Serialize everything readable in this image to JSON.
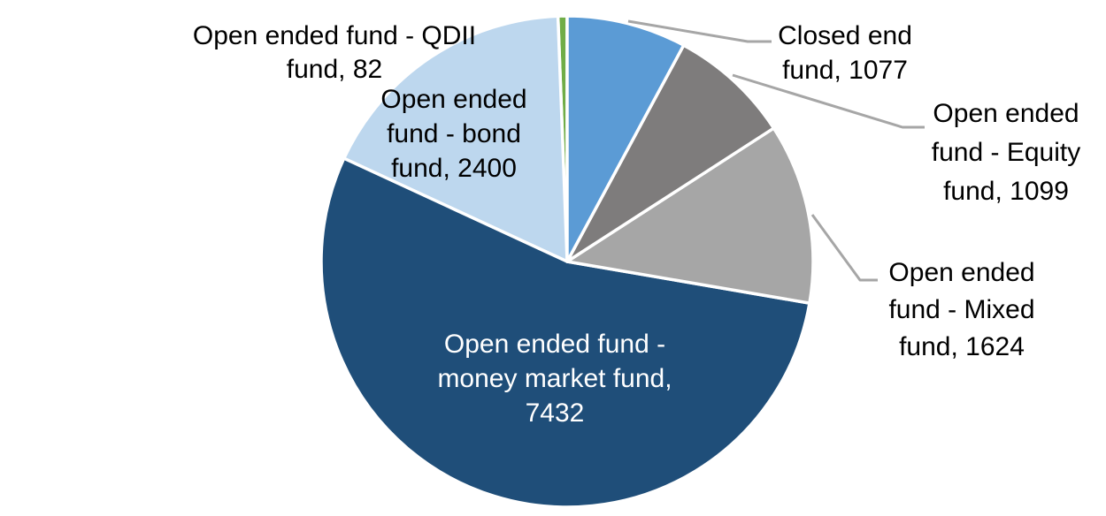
{
  "chart_data": {
    "type": "pie",
    "title": "",
    "legend": "none",
    "background": "#FFFFFF",
    "slice_border_color": "#FFFFFF",
    "leader_line_color": "#A6A6A6",
    "start_angle_deg": 0,
    "direction": "clockwise",
    "total": 13714,
    "series": [
      {
        "name": "Closed end fund",
        "value": 1077,
        "color": "#5B9BD5",
        "label_color": "#000000"
      },
      {
        "name": "Open ended fund - Equity fund",
        "value": 1099,
        "color": "#7E7C7C",
        "label_color": "#000000"
      },
      {
        "name": "Open ended fund - Mixed fund",
        "value": 1624,
        "color": "#A6A6A6",
        "label_color": "#000000"
      },
      {
        "name": "Open ended fund - money market fund",
        "value": 7432,
        "color": "#1F4E79",
        "label_color": "#FFFFFF"
      },
      {
        "name": "Open ended fund - bond fund",
        "value": 2400,
        "color": "#BDD7EE",
        "label_color": "#000000"
      },
      {
        "name": "Open ended fund - QDII fund",
        "value": 82,
        "color": "#70AD47",
        "label_color": "#000000"
      }
    ]
  },
  "labels": {
    "qdii": {
      "lines": [
        "Open ended fund - QDII",
        "fund, 82"
      ],
      "text_color": "#000000"
    },
    "bond": {
      "lines": [
        "Open ended",
        "fund - bond",
        "fund, 2400"
      ],
      "text_color": "#000000"
    },
    "money_market": {
      "lines": [
        "Open ended fund -",
        "money market fund,",
        "7432"
      ],
      "text_color": "#FFFFFF"
    },
    "closed_end": {
      "lines": [
        "Closed end",
        "fund, 1077"
      ],
      "text_color": "#000000"
    },
    "equity": {
      "lines": [
        "Open ended",
        "fund - Equity",
        "fund, 1099"
      ],
      "text_color": "#000000"
    },
    "mixed": {
      "lines": [
        "Open ended",
        "fund - Mixed",
        "fund, 1624"
      ],
      "text_color": "#000000"
    }
  }
}
